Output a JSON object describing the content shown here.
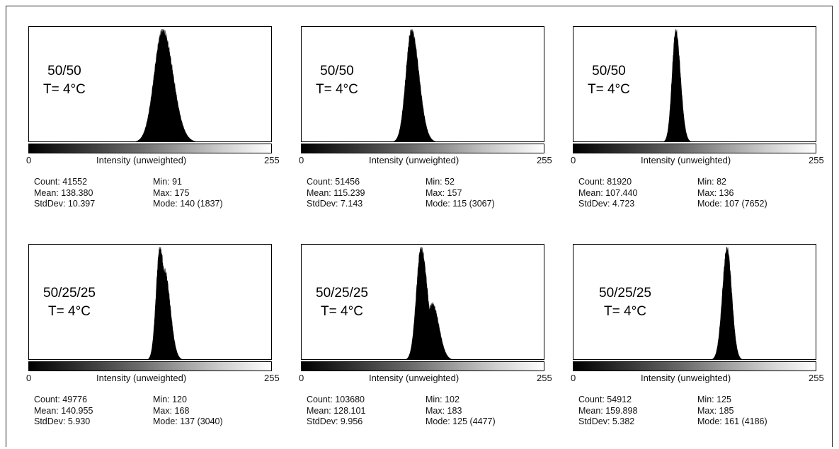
{
  "chart_data": [
    {
      "type": "histogram",
      "label_line1": "50/50",
      "label_line2": "T= 4°C",
      "xlabel": "Intensity (unweighted)",
      "x_min_label": "0",
      "x_max_label": "255",
      "xlim": [
        0,
        255
      ],
      "shape": {
        "peak": 140,
        "sigma_left": 9,
        "sigma_right": 11
      },
      "stats": {
        "count": "Count: 41552",
        "mean": "Mean: 138.380",
        "stddev": "StdDev: 10.397",
        "min": "Min: 91",
        "max": "Max: 175",
        "mode": "Mode: 140 (1837)"
      }
    },
    {
      "type": "histogram",
      "label_line1": "50/50",
      "label_line2": "T= 4°C",
      "xlabel": "Intensity (unweighted)",
      "x_min_label": "0",
      "x_max_label": "255",
      "xlim": [
        0,
        255
      ],
      "shape": {
        "peak": 115,
        "sigma_left": 6,
        "sigma_right": 8
      },
      "stats": {
        "count": "Count: 51456",
        "mean": "Mean: 115.239",
        "stddev": "StdDev: 7.143",
        "min": "Min: 52",
        "max": "Max: 157",
        "mode": "Mode: 115 (3067)"
      }
    },
    {
      "type": "histogram",
      "label_line1": "50/50",
      "label_line2": "T= 4°C",
      "xlabel": "Intensity (unweighted)",
      "x_min_label": "0",
      "x_max_label": "255",
      "xlim": [
        0,
        255
      ],
      "shape": {
        "peak": 107,
        "sigma_left": 4,
        "sigma_right": 5
      },
      "stats": {
        "count": "Count: 81920",
        "mean": "Mean: 107.440",
        "stddev": "StdDev: 4.723",
        "min": "Min: 82",
        "max": "Max: 136",
        "mode": "Mode: 107 (7652)"
      }
    },
    {
      "type": "histogram",
      "label_line1": "50/25/25",
      "label_line2": "T= 4°C",
      "xlabel": "Intensity (unweighted)",
      "x_min_label": "0",
      "x_max_label": "255",
      "xlim": [
        0,
        255
      ],
      "shape": {
        "peak": 137,
        "sigma_left": 4,
        "sigma_right": 6,
        "shoulder": {
          "at": 142,
          "level": 0.8
        }
      },
      "stats": {
        "count": "Count: 49776",
        "mean": "Mean: 140.955",
        "stddev": "StdDev: 5.930",
        "min": "Min: 120",
        "max": "Max: 168",
        "mode": "Mode: 137 (3040)"
      }
    },
    {
      "type": "histogram",
      "label_line1": "50/25/25",
      "label_line2": "T= 4°C",
      "xlabel": "Intensity (unweighted)",
      "x_min_label": "0",
      "x_max_label": "255",
      "xlim": [
        0,
        255
      ],
      "shape": {
        "peak": 125,
        "sigma_left": 5,
        "sigma_right": 7,
        "shoulder": {
          "at": 137,
          "level": 0.5,
          "sigma": 7
        }
      },
      "stats": {
        "count": "Count: 103680",
        "mean": "Mean: 128.101",
        "stddev": "StdDev: 9.956",
        "min": "Min: 102",
        "max": "Max: 183",
        "mode": "Mode: 125 (4477)"
      }
    },
    {
      "type": "histogram",
      "label_line1": "50/25/25",
      "label_line2": "T= 4°C",
      "xlabel": "Intensity (unweighted)",
      "x_min_label": "0",
      "x_max_label": "255",
      "xlim": [
        0,
        255
      ],
      "shape": {
        "peak": 161,
        "sigma_left": 5,
        "sigma_right": 5
      },
      "stats": {
        "count": "Count: 54912",
        "mean": "Mean: 159.898",
        "stddev": "StdDev: 5.382",
        "min": "Min: 125",
        "max": "Max: 185",
        "mode": "Mode: 161 (4186)"
      }
    }
  ]
}
